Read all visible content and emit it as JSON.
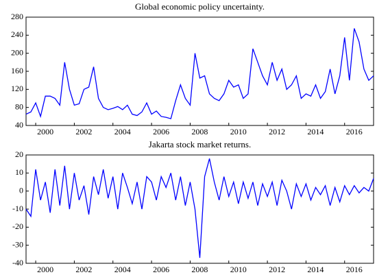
{
  "chart_data": [
    {
      "type": "line",
      "title": "Global economic policy uncertainty.",
      "color": "#0000ff",
      "grid": false,
      "x": [
        1999.5,
        1999.75,
        2000,
        2000.25,
        2000.5,
        2000.75,
        2001,
        2001.25,
        2001.5,
        2001.75,
        2002,
        2002.25,
        2002.5,
        2002.75,
        2003,
        2003.25,
        2003.5,
        2003.75,
        2004,
        2004.25,
        2004.5,
        2004.75,
        2005,
        2005.25,
        2005.5,
        2005.75,
        2006,
        2006.25,
        2006.5,
        2006.75,
        2007,
        2007.25,
        2007.5,
        2007.75,
        2008,
        2008.25,
        2008.5,
        2008.75,
        2009,
        2009.25,
        2009.5,
        2009.75,
        2010,
        2010.25,
        2010.5,
        2010.75,
        2011,
        2011.25,
        2011.5,
        2011.75,
        2012,
        2012.25,
        2012.5,
        2012.75,
        2013,
        2013.25,
        2013.5,
        2013.75,
        2014,
        2014.25,
        2014.5,
        2014.75,
        2015,
        2015.25,
        2015.5,
        2015.75,
        2016,
        2016.25,
        2016.5,
        2016.75,
        2017,
        2017.25,
        2017.5
      ],
      "values": [
        65,
        70,
        90,
        60,
        105,
        105,
        100,
        85,
        180,
        120,
        85,
        88,
        120,
        125,
        170,
        100,
        80,
        75,
        78,
        82,
        75,
        85,
        65,
        62,
        70,
        90,
        65,
        72,
        60,
        58,
        55,
        95,
        130,
        100,
        85,
        200,
        145,
        150,
        110,
        100,
        95,
        110,
        140,
        125,
        130,
        100,
        110,
        210,
        180,
        150,
        130,
        180,
        140,
        165,
        120,
        130,
        150,
        100,
        110,
        105,
        130,
        100,
        115,
        165,
        110,
        150,
        235,
        140,
        255,
        225,
        165,
        140,
        150
      ],
      "xlim": [
        1999.5,
        2017.5
      ],
      "xticks": [
        2000,
        2002,
        2004,
        2006,
        2008,
        2010,
        2012,
        2014,
        2016
      ],
      "ylim": [
        40,
        280
      ],
      "yticks": [
        40,
        80,
        120,
        160,
        200,
        240,
        280
      ]
    },
    {
      "type": "line",
      "title": "Jakarta stock market returns.",
      "color": "#0000ff",
      "grid": false,
      "x": [
        1999.5,
        1999.75,
        2000,
        2000.25,
        2000.5,
        2000.75,
        2001,
        2001.25,
        2001.5,
        2001.75,
        2002,
        2002.25,
        2002.5,
        2002.75,
        2003,
        2003.25,
        2003.5,
        2003.75,
        2004,
        2004.25,
        2004.5,
        2004.75,
        2005,
        2005.25,
        2005.5,
        2005.75,
        2006,
        2006.25,
        2006.5,
        2006.75,
        2007,
        2007.25,
        2007.5,
        2007.75,
        2008,
        2008.25,
        2008.5,
        2008.75,
        2009,
        2009.25,
        2009.5,
        2009.75,
        2010,
        2010.25,
        2010.5,
        2010.75,
        2011,
        2011.25,
        2011.5,
        2011.75,
        2012,
        2012.25,
        2012.5,
        2012.75,
        2013,
        2013.25,
        2013.5,
        2013.75,
        2014,
        2014.25,
        2014.5,
        2014.75,
        2015,
        2015.25,
        2015.5,
        2015.75,
        2016,
        2016.25,
        2016.5,
        2016.75,
        2017,
        2017.25,
        2017.5
      ],
      "values": [
        -10,
        -14,
        12,
        -5,
        5,
        -12,
        12,
        -8,
        14,
        -10,
        10,
        -5,
        3,
        -13,
        8,
        -2,
        12,
        -4,
        8,
        -10,
        10,
        2,
        -7,
        5,
        -10,
        8,
        5,
        -5,
        8,
        2,
        10,
        -5,
        8,
        -8,
        5,
        -10,
        -37,
        8,
        18,
        5,
        -5,
        8,
        -3,
        5,
        -7,
        5,
        -4,
        5,
        -8,
        4,
        -3,
        5,
        -8,
        6,
        0,
        -10,
        4,
        -3,
        4,
        -5,
        2,
        -2,
        3,
        -8,
        2,
        -6,
        3,
        -2,
        3,
        -1,
        2,
        0,
        7
      ],
      "xlim": [
        1999.5,
        2017.5
      ],
      "xticks": [
        2000,
        2002,
        2004,
        2006,
        2008,
        2010,
        2012,
        2014,
        2016
      ],
      "ylim": [
        -40,
        20
      ],
      "yticks": [
        -40,
        -30,
        -20,
        -10,
        0,
        10,
        20
      ]
    }
  ]
}
